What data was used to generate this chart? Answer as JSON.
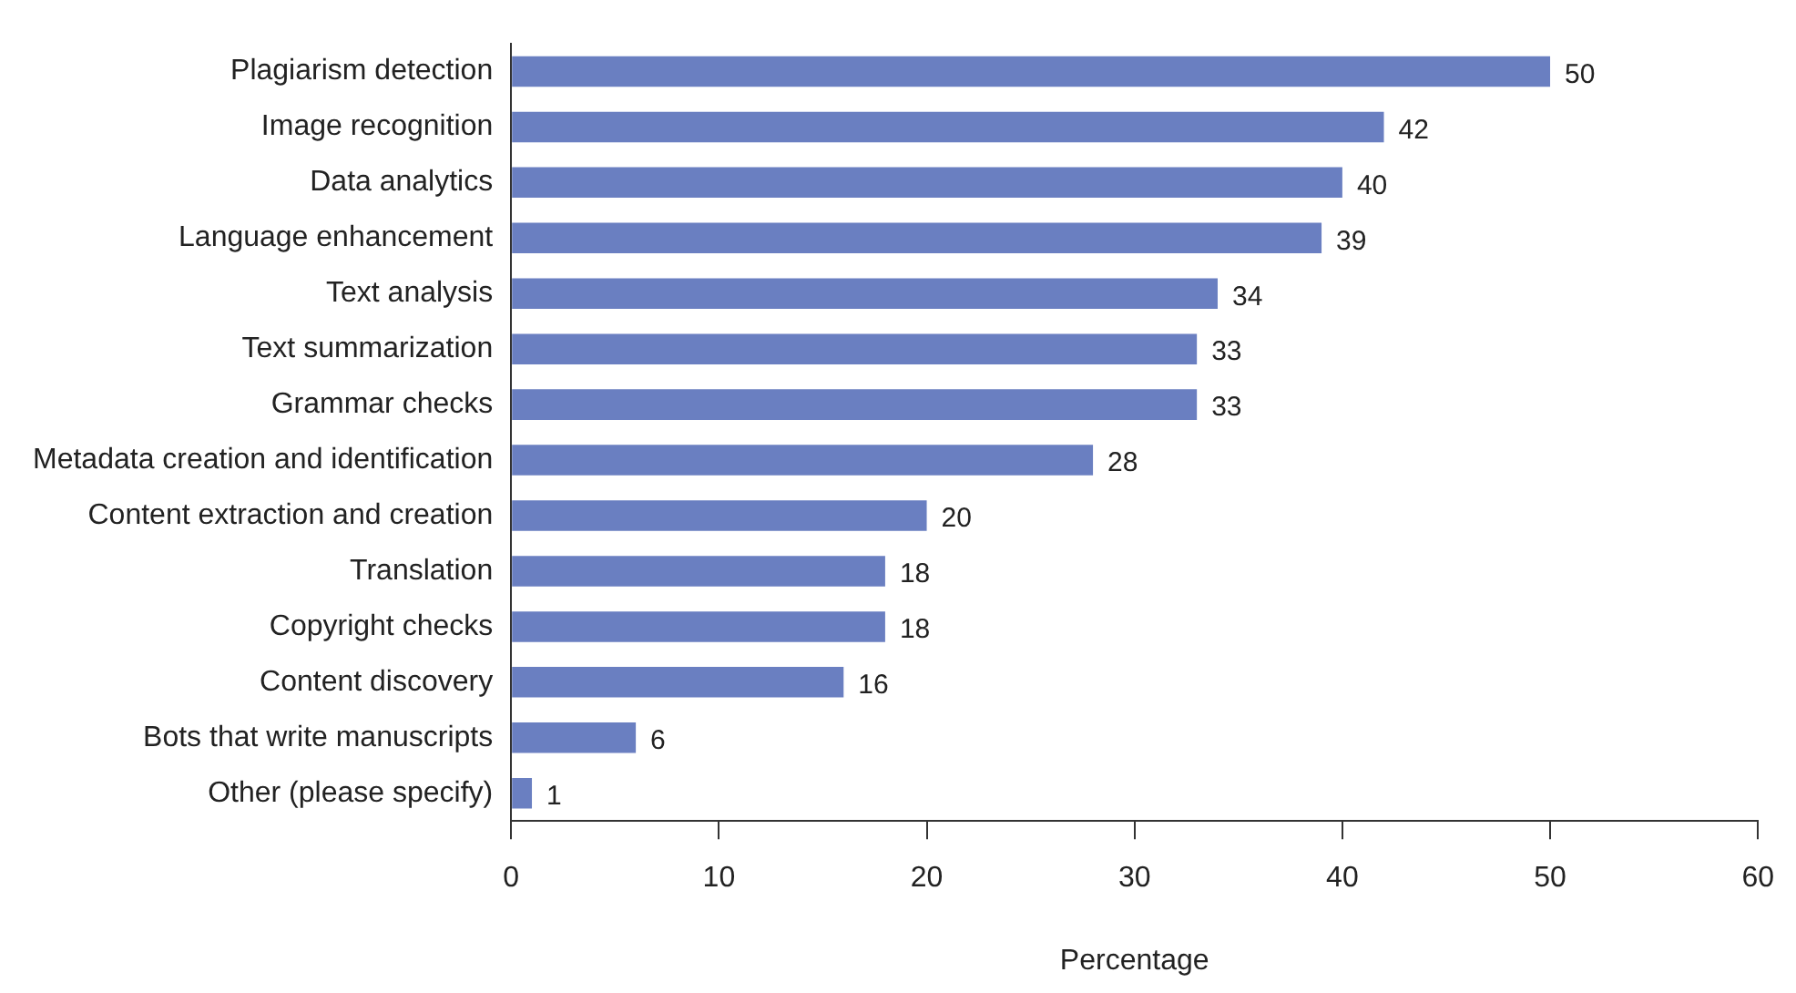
{
  "chart_data": {
    "type": "bar",
    "orientation": "horizontal",
    "xlabel": "Percentage",
    "categories": [
      "Plagiarism detection",
      "Image recognition",
      "Data analytics",
      "Language enhancement",
      "Text analysis",
      "Text summarization",
      "Grammar checks",
      "Metadata creation and identification",
      "Content extraction and creation",
      "Translation",
      "Copyright checks",
      "Content discovery",
      "Bots that write manuscripts",
      "Other (please specify)"
    ],
    "values": [
      50,
      42,
      40,
      39,
      34,
      33,
      33,
      28,
      20,
      18,
      18,
      16,
      6,
      1
    ],
    "color": "#6a7fc1",
    "xlim": [
      0,
      60
    ],
    "xticks": [
      0,
      10,
      20,
      30,
      40,
      50,
      60
    ],
    "grid": false,
    "legend": false,
    "data_labels": true
  }
}
